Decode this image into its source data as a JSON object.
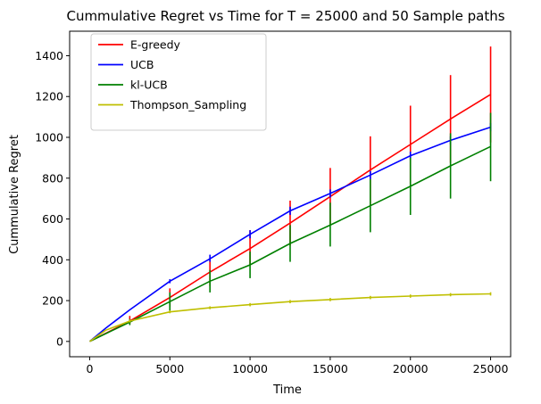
{
  "chart_data": {
    "type": "line",
    "title": "Cummulative Regret vs Time for T = 25000 and 50 Sample paths",
    "xlabel": "Time",
    "ylabel": "Cummulative Regret",
    "xlim": [
      -1250,
      26250
    ],
    "ylim": [
      -75,
      1520
    ],
    "xticks": [
      0,
      5000,
      10000,
      15000,
      20000,
      25000
    ],
    "yticks": [
      0,
      200,
      400,
      600,
      800,
      1000,
      1200,
      1400
    ],
    "grid": false,
    "legend_position": "upper-left",
    "series": [
      {
        "name": "E-greedy",
        "color": "#ff0000",
        "x": [
          0,
          2500,
          5000,
          7500,
          10000,
          12500,
          15000,
          17500,
          20000,
          22500,
          25000
        ],
        "values": [
          0,
          100,
          215,
          340,
          455,
          580,
          710,
          840,
          965,
          1090,
          1210
        ],
        "error_x": [
          2500,
          5000,
          7500,
          10000,
          12500,
          15000,
          17500,
          20000,
          22500,
          25000
        ],
        "error_low": [
          85,
          170,
          270,
          375,
          470,
          570,
          670,
          770,
          875,
          975
        ],
        "error_high": [
          125,
          260,
          410,
          545,
          690,
          850,
          1005,
          1155,
          1305,
          1445
        ]
      },
      {
        "name": "UCB",
        "color": "#0000ff",
        "x": [
          0,
          1000,
          2500,
          5000,
          7500,
          10000,
          12500,
          15000,
          17500,
          20000,
          22500,
          25000
        ],
        "values": [
          0,
          65,
          155,
          295,
          405,
          525,
          640,
          725,
          815,
          910,
          985,
          1050
        ],
        "error_x": [
          5000,
          7500,
          10000,
          12500,
          15000,
          17500,
          20000,
          22500,
          25000
        ],
        "error_low": [
          285,
          390,
          505,
          620,
          705,
          795,
          890,
          965,
          1030
        ],
        "error_high": [
          305,
          425,
          545,
          660,
          745,
          835,
          930,
          1005,
          1070
        ]
      },
      {
        "name": "kl-UCB",
        "color": "#008000",
        "x": [
          0,
          2500,
          5000,
          7500,
          10000,
          12500,
          15000,
          17500,
          20000,
          22500,
          25000
        ],
        "values": [
          0,
          95,
          195,
          295,
          375,
          480,
          570,
          665,
          760,
          860,
          955
        ],
        "error_x": [
          2500,
          5000,
          7500,
          10000,
          12500,
          15000,
          17500,
          20000,
          22500,
          25000
        ],
        "error_low": [
          80,
          150,
          240,
          310,
          390,
          465,
          535,
          620,
          700,
          785
        ],
        "error_high": [
          110,
          240,
          350,
          440,
          570,
          680,
          795,
          900,
          1020,
          1120
        ]
      },
      {
        "name": "Thompson_Sampling",
        "color": "#bfbf00",
        "x": [
          0,
          1000,
          2500,
          5000,
          7500,
          10000,
          12500,
          15000,
          17500,
          20000,
          22500,
          25000
        ],
        "values": [
          0,
          55,
          100,
          145,
          165,
          180,
          195,
          205,
          215,
          222,
          229,
          233
        ],
        "error_x": [
          2500,
          5000,
          7500,
          10000,
          12500,
          15000,
          17500,
          20000,
          22500,
          25000
        ],
        "error_low": [
          93,
          138,
          158,
          172,
          187,
          197,
          207,
          214,
          221,
          225
        ],
        "error_high": [
          107,
          152,
          172,
          188,
          203,
          213,
          223,
          230,
          237,
          241
        ]
      }
    ]
  }
}
